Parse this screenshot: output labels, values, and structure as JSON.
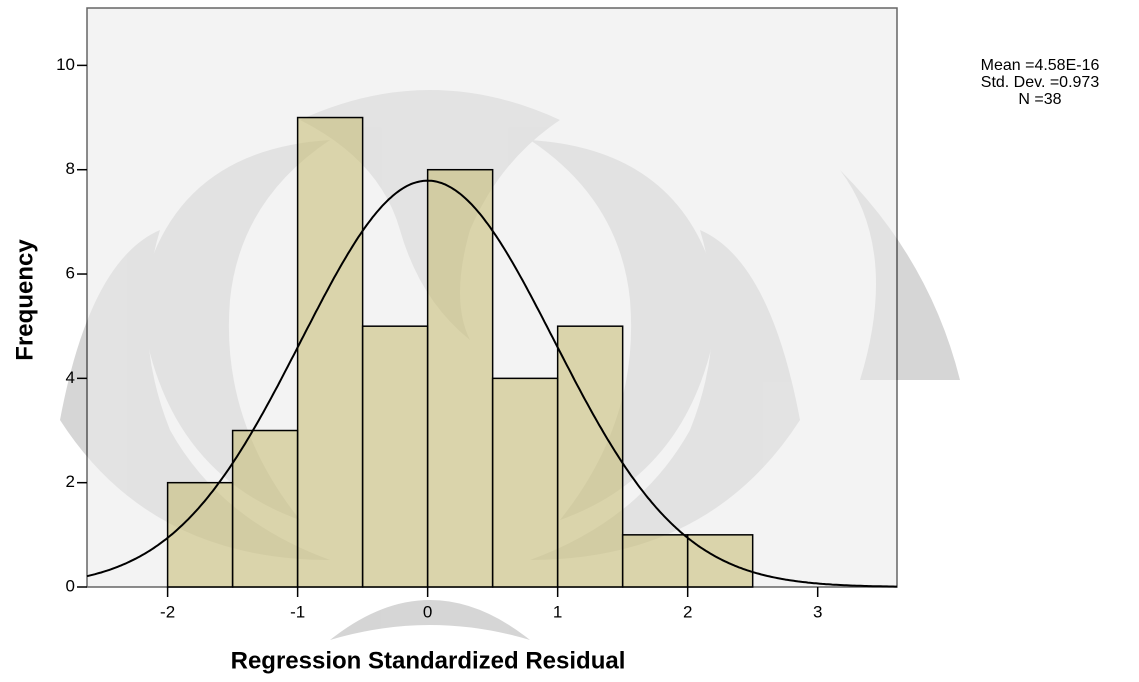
{
  "chart_data": {
    "type": "histogram",
    "x_label": "Regression Standardized Residual",
    "y_label": "Frequency",
    "bins": [
      -2,
      -1.5,
      -1,
      -0.5,
      0,
      0.5,
      1,
      1.5,
      2,
      2.5
    ],
    "values": [
      2,
      3,
      9,
      5,
      8,
      4,
      5,
      1,
      1
    ],
    "color": "rgba(196,186,112,0.55)",
    "xlim": [
      -2.62,
      3.61
    ],
    "ylim": [
      0,
      11.1
    ],
    "xticks": [
      -2,
      -1,
      0,
      1,
      2,
      3
    ],
    "yticks": [
      0,
      2,
      4,
      6,
      8,
      10
    ],
    "stats": [
      {
        "value": 4.58e-16,
        "label": "Mean =4.58E-16"
      },
      {
        "value": 0.973,
        "label": "Std. Dev. =0.973"
      },
      {
        "value": 38,
        "label": "N =38"
      }
    ]
  }
}
